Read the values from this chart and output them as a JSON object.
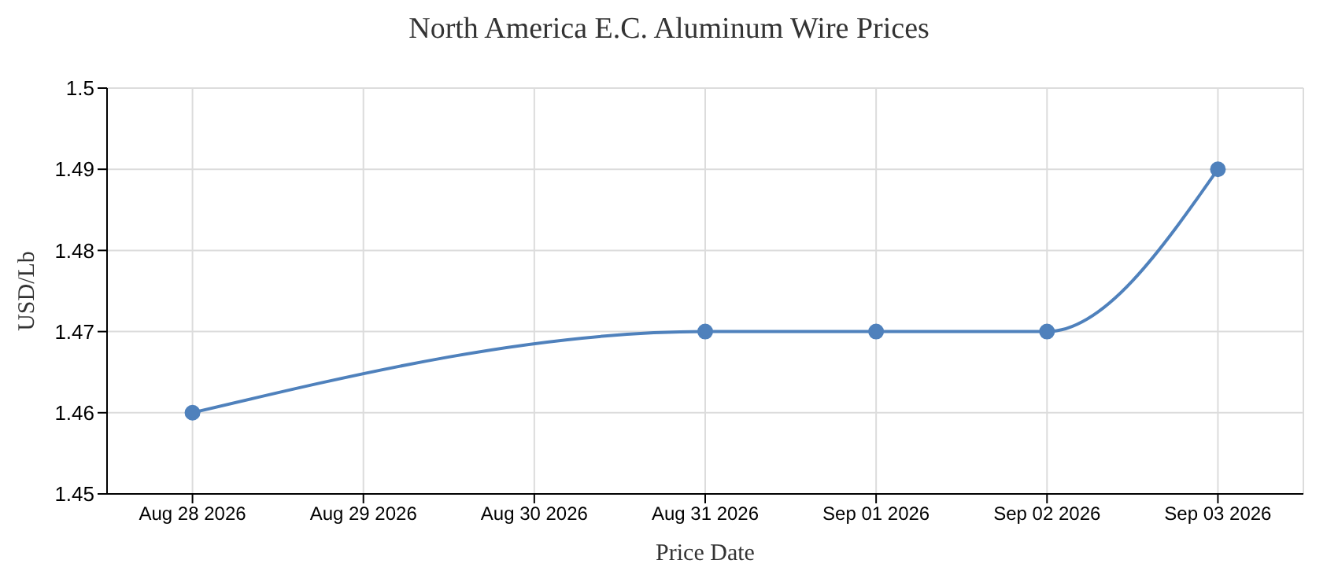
{
  "chart_data": {
    "type": "line",
    "title": "North America E.C. Aluminum Wire Prices",
    "xlabel": "Price Date",
    "ylabel": "USD/Lb",
    "x": [
      "2026-08-28",
      "2026-08-31",
      "2026-09-01",
      "2026-09-02",
      "2026-09-03"
    ],
    "series": [
      {
        "color": "#4f81bc",
        "values": [
          1.46,
          1.47,
          1.47,
          1.47,
          1.49
        ]
      }
    ],
    "xlim": [
      "2026-08-27T12:00",
      "2026-09-03T12:00"
    ],
    "xticks": [
      {
        "value": "2026-08-28",
        "label": "Aug 28 2026"
      },
      {
        "value": "2026-08-29",
        "label": "Aug 29 2026"
      },
      {
        "value": "2026-08-30",
        "label": "Aug 30 2026"
      },
      {
        "value": "2026-08-31",
        "label": "Aug 31 2026"
      },
      {
        "value": "2026-09-01",
        "label": "Sep 01 2026"
      },
      {
        "value": "2026-09-02",
        "label": "Sep 02 2026"
      },
      {
        "value": "2026-09-03",
        "label": "Sep 03 2026"
      }
    ],
    "ylim": [
      1.45,
      1.5
    ],
    "yticks": [
      1.45,
      1.46,
      1.47,
      1.48,
      1.49,
      1.5
    ],
    "grid": true,
    "marker": "circle",
    "line_style": "solid"
  }
}
